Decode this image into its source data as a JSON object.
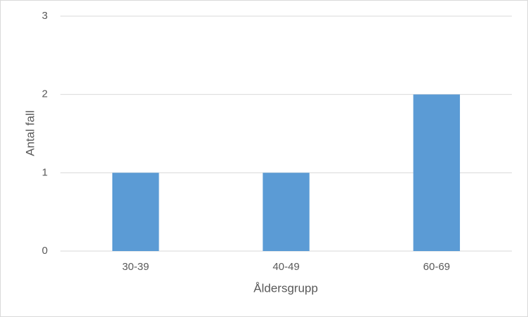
{
  "chart_data": {
    "type": "bar",
    "x_label": "Åldersgrupp",
    "y_label": "Antal fall",
    "categories": [
      "30-39",
      "40-49",
      "60-69"
    ],
    "values": [
      1,
      1,
      2
    ],
    "color": "#5b9bd5",
    "ylim": [
      0,
      3
    ],
    "yticks": [
      0,
      1,
      2,
      3
    ],
    "grid": true
  }
}
